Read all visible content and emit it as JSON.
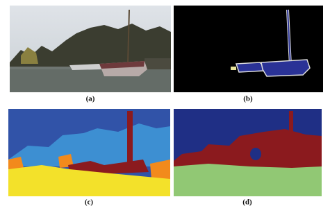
{
  "figure": {
    "panels": [
      {
        "label": "(a)"
      },
      {
        "label": "(b)"
      },
      {
        "label": "(c)"
      },
      {
        "label": "(d)"
      }
    ]
  }
}
